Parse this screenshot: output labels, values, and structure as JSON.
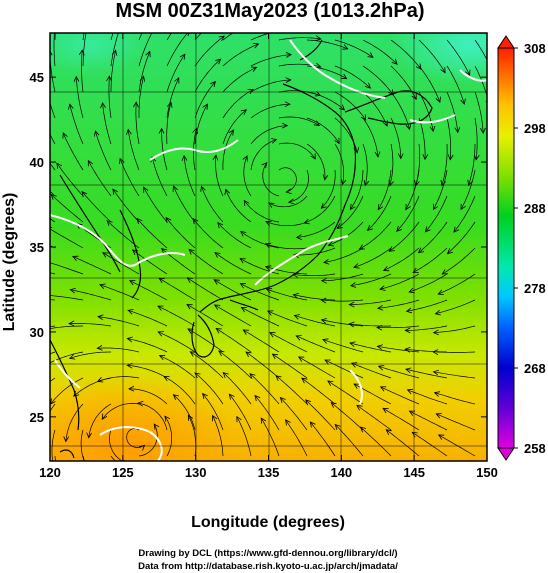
{
  "chart_data": {
    "type": "heatmap",
    "title": "MSM 00Z31May2023 (1013.2hPa)",
    "xlabel": "Longitude (degrees)",
    "ylabel": "Latitude  (degrees)",
    "xlim": [
      120,
      150
    ],
    "ylim": [
      22.4,
      47.6
    ],
    "xticks": [
      120,
      125,
      130,
      135,
      140,
      145,
      150
    ],
    "yticks": [
      25,
      30,
      35,
      40,
      45
    ],
    "colorbar": {
      "ticks": [
        258,
        268,
        278,
        288,
        298,
        308
      ],
      "range": [
        258,
        308
      ],
      "extend": "both",
      "colors": [
        "#e000e0",
        "#0000d0",
        "#0060ff",
        "#00c8ff",
        "#00e8b0",
        "#00d020",
        "#80e000",
        "#e8f000",
        "#ffc000",
        "#ff7000",
        "#ff2000"
      ]
    },
    "field": "temperature (K) with streamlines",
    "temperature_regions": [
      {
        "area": "north of 36N",
        "value": 286
      },
      {
        "area": "35N-31N",
        "value": 289
      },
      {
        "area": "30N-27N",
        "value": 292
      },
      {
        "area": "south of 27N, west of 133E",
        "value": 296
      },
      {
        "area": "south of 27N, east of 133E",
        "value": 294
      }
    ],
    "flow": [
      {
        "feature": "cyclonic vortex",
        "lon": 136,
        "lat": 39
      },
      {
        "feature": "anticyclonic circulation",
        "lon": 126,
        "lat": 24
      }
    ],
    "grid": true
  },
  "credits": {
    "line1": "Drawing by DCL (https://www.gfd-dennou.org/library/dcl/)",
    "line2": "Data from http://database.rish.kyoto-u.ac.jp/arch/jmadata/"
  }
}
